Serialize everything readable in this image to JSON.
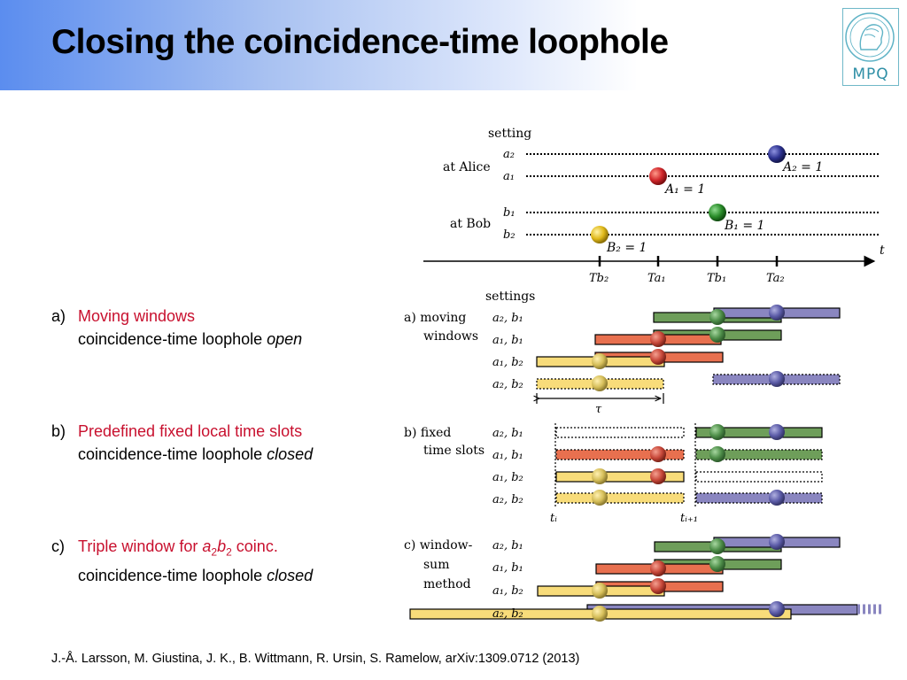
{
  "title": "Closing the coincidence-time loophole",
  "logo": {
    "text": "MPQ",
    "icon": "minerva-head-icon"
  },
  "items": [
    {
      "letter": "a)",
      "heading": "Moving windows",
      "line2_pre": "coincidence-time loophole ",
      "line2_em": "open"
    },
    {
      "letter": "b)",
      "heading": "Predefined fixed local time slots",
      "line2_pre": "coincidence-time loophole ",
      "line2_em": "closed"
    },
    {
      "letter": "c)",
      "heading_pre": "Triple window for ",
      "heading_a": "a",
      "heading_sub1": "2",
      "heading_b": "b",
      "heading_sub2": "2",
      "heading_post": " coinc.",
      "line2_pre": "coincidence-time loophole ",
      "line2_em": "closed"
    }
  ],
  "citation": "J.-Å. Larsson, M. Giustina, J. K., B. Wittmann, R. Ursin, S. Ramelow, arXiv:1309.0712 (2013)",
  "colors": {
    "red": "#d0453a",
    "green": "#3f9a3f",
    "blue": "#4a4d9a",
    "yellow": "#f2cc35",
    "bar_green": "#6e9e5a",
    "bar_blue": "#8a86c0",
    "bar_red": "#e8704f",
    "bar_yellow": "#f8dc7a"
  },
  "top_diagram": {
    "header": "setting",
    "alice_label": "at Alice",
    "bob_label": "at Bob",
    "rows": [
      "a₂",
      "a₁",
      "b₁",
      "b₂"
    ],
    "events": [
      "A₂ = 1",
      "A₁ = 1",
      "B₁ = 1",
      "B₂ = 1"
    ],
    "axis_label": "t",
    "ticks": [
      "Tb₂",
      "Ta₁",
      "Tb₁",
      "Ta₂"
    ]
  },
  "panels_header": "settings",
  "panel_a": {
    "label1": "a) moving",
    "label2": "windows",
    "rows": [
      "a₂, b₁",
      "a₁, b₁",
      "a₁, b₂",
      "a₂, b₂"
    ],
    "tau": "τ"
  },
  "panel_b": {
    "label1": "b) fixed",
    "label2": "time slots",
    "rows": [
      "a₂, b₁",
      "a₁, b₁",
      "a₁, b₂",
      "a₂, b₂"
    ],
    "t_i": "tᵢ",
    "t_i1": "tᵢ₊₁"
  },
  "panel_c": {
    "label1": "c) window-",
    "label2": "sum",
    "label3": "method",
    "rows": [
      "a₂, b₁",
      "a₁, b₁",
      "a₁, b₂",
      "a₂, b₂"
    ]
  }
}
